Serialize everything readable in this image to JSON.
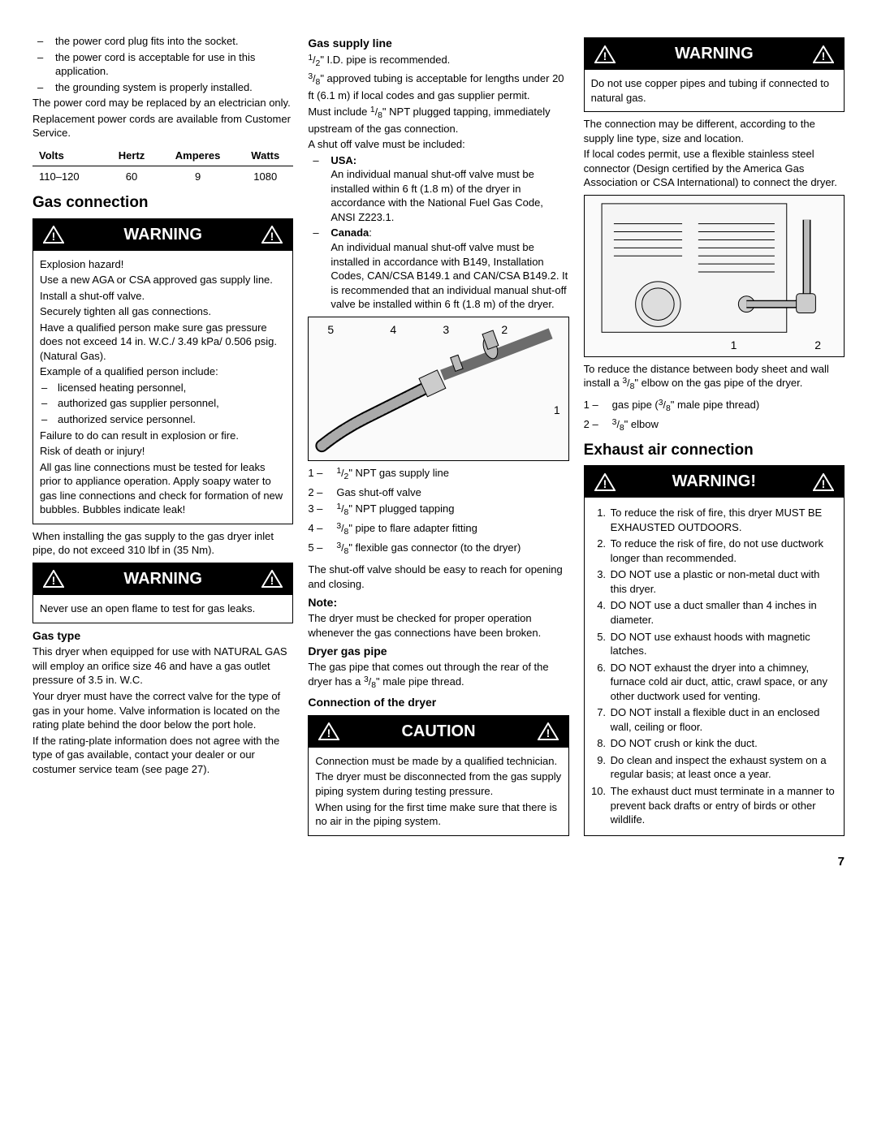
{
  "col1": {
    "list1": [
      "the power cord plug fits into the socket.",
      "the power cord is acceptable for use in this application.",
      "the grounding system is properly installed."
    ],
    "p1": "The power cord may be replaced by an electrician only.",
    "p2": "Replacement power cords are available from Customer Service.",
    "table": {
      "headers": [
        "Volts",
        "Hertz",
        "Amperes",
        "Watts"
      ],
      "row": [
        "110–120",
        "60",
        "9",
        "1080"
      ]
    },
    "h_gas": "Gas connection",
    "warn1_title": "WARNING",
    "warn1_box": {
      "p1": "Explosion hazard!",
      "p2": "Use a new AGA or CSA approved gas supply line.",
      "p3": "Install a shut-off valve.",
      "p4": "Securely tighten all gas connections.",
      "p5": "Have a qualified person make sure gas pressure does not exceed 14 in. W.C./ 3.49 kPa/ 0.506 psig. (Natural Gas).",
      "p6": "Example of a qualified person include:",
      "items": [
        "licensed heating personnel,",
        "authorized gas supplier personnel,",
        "authorized service personnel."
      ],
      "p7": "Failure to do can result in explosion or fire.",
      "p8": "Risk of death or injury!",
      "p9": "All gas line connections must be tested for leaks prior to appliance operation. Apply soapy water to gas line connections and check for formation of new bubbles. Bubbles indicate leak!"
    },
    "p_install": "When installing the gas supply to the gas dryer inlet pipe, do not exceed 310 lbf in (35 Nm).",
    "warn2_title": "WARNING",
    "warn2_box": "Never use an open flame to test for gas leaks.",
    "h_gastype": "Gas type",
    "gastype_p1": "This dryer when equipped for use with NATURAL GAS will employ an orifice size 46 and have a gas outlet pressure of 3.5 in. W.C.",
    "gastype_p2": "Your dryer must have the correct valve for the type of gas in your home. Valve information is located on the rating plate behind the door below the port hole.",
    "gastype_p3": "If the rating-plate information does not agree with the type of gas available, contact your dealer or our costumer service team (see page 27)."
  },
  "col2": {
    "h_supply": "Gas supply line",
    "supply_p1a": "\" I.D. pipe is recommended.",
    "supply_p1b": "\" approved tubing is acceptable for lengths under 20 ft (6.1 m) if local codes and gas supplier permit.",
    "supply_p1c": "Must include ",
    "supply_p1d": "\" NPT plugged tapping, immediately upstream of the gas connection.",
    "supply_p2": "A shut off valve must be included:",
    "usa_label": "USA:",
    "usa_text": "An individual manual shut-off valve must be installed within 6 ft (1.8 m) of the dryer in accordance with the National Fuel Gas Code, ANSI Z223.1.",
    "canada_label": "Canada",
    "canada_text": "An individual manual shut-off valve must be installed in accordance with B149, Installation Codes, CAN/CSA B149.1 and CAN/CSA B149.2. It is recommended that an individual manual shut-off valve be installed within 6 ft (1.8 m) of the dryer.",
    "diag_labels": {
      "l1": "1",
      "l2": "2",
      "l3": "3",
      "l4": "4",
      "l5": "5"
    },
    "legend1": [
      {
        "n": "1 –",
        "t": "\" NPT gas supply line",
        "frac": "1/2"
      },
      {
        "n": "2 –",
        "t": "Gas shut-off valve"
      },
      {
        "n": "3 –",
        "t": "\" NPT plugged tapping",
        "frac": "1/8"
      },
      {
        "n": "4 –",
        "t": "\" pipe to flare adapter fitting",
        "frac": "3/8"
      },
      {
        "n": "5 –",
        "t": "\" flexible gas connector (to the dryer)",
        "frac": "3/8"
      }
    ],
    "p_shutoff": "The shut-off valve should be easy to reach for opening and closing.",
    "h_note": "Note:",
    "note_p": "The dryer must be checked for proper operation whenever the gas connections have been broken.",
    "h_pipe": "Dryer gas pipe",
    "pipe_p1a": "The gas pipe that comes out through the rear of the dryer has a ",
    "pipe_p1b": "\" male pipe thread.",
    "h_conn": "Connection of the dryer",
    "caution_title": "CAUTION",
    "caution_box": {
      "p1": "Connection must be made by a qualified technician.",
      "p2": "The dryer must be disconnected from the gas supply piping system during testing pressure.",
      "p3": "When using for the first time make sure that there is no air in the piping system."
    }
  },
  "col3": {
    "warn3_title": "WARNING",
    "warn3_box": "Do not use copper pipes and tubing if connected to natural gas.",
    "p_conn": "The connection may be different, according to the supply line type, size and location.",
    "p_local": "If local codes permit, use a flexible stainless steel connector (Design certified by the America Gas Association or CSA International) to connect the dryer.",
    "diag2_labels": {
      "l1": "1",
      "l2": "2"
    },
    "p_reduce_a": "To reduce the distance between body sheet and wall install a ",
    "p_reduce_b": "\" elbow on the gas pipe of the dryer.",
    "legend2": [
      {
        "n": "1 –",
        "t_a": "gas pipe (",
        "t_b": "\" male pipe thread)",
        "frac": "3/8"
      },
      {
        "n": "2 –",
        "t_b": "\" elbow",
        "frac": "3/8"
      }
    ],
    "h_exhaust": "Exhaust air connection",
    "warn4_title": "WARNING!",
    "warn4_list": [
      "To reduce the risk of fire, this dryer MUST BE EXHAUSTED OUTDOORS.",
      "To reduce the risk of fire, do not use ductwork longer than recommended.",
      "DO NOT use a plastic or non-metal duct with this dryer.",
      "DO NOT use a duct smaller than 4 inches in diameter.",
      "DO NOT use exhaust hoods with magnetic latches.",
      "DO NOT exhaust the dryer into a chimney, furnace cold air duct, attic, crawl space, or any other ductwork used for venting.",
      "DO NOT install a flexible duct in an enclosed wall, ceiling or floor.",
      "DO NOT crush or kink the duct.",
      "Do clean and inspect the exhaust system on a regular basis; at least once a year.",
      "The exhaust duct must terminate in a manner to prevent back drafts or entry of birds or other wildlife."
    ]
  },
  "page": "7"
}
